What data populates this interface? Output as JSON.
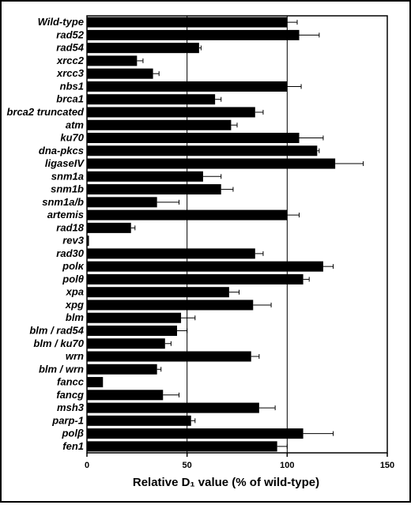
{
  "chart_data": {
    "type": "bar",
    "orientation": "horizontal",
    "title": "",
    "xlabel": "Relative D₁ value (% of wild-type)",
    "ylabel": "",
    "xlim": [
      0,
      150
    ],
    "xticks": [
      0,
      50,
      100,
      150
    ],
    "grid": "vertical lines at 50 and 100",
    "bar_color": "#000000",
    "categories": [
      "Wild-type",
      "rad52",
      "rad54",
      "xrcc2",
      "xrcc3",
      "nbs1",
      "brca1",
      "brca2 truncated",
      "atm",
      "ku70",
      "dna-pkcs",
      "ligaseIV",
      "snm1a",
      "snm1b",
      "snm1a/b",
      "artemis",
      "rad18",
      "rev3",
      "rad30",
      "polκ",
      "polθ",
      "xpa",
      "xpg",
      "blm",
      "blm / rad54",
      "blm / ku70",
      "wrn",
      "blm / wrn",
      "fancc",
      "fancg",
      "msh3",
      "parp-1",
      "polβ",
      "fen1"
    ],
    "values": [
      100,
      106,
      56,
      25,
      33,
      100,
      64,
      84,
      72,
      106,
      115,
      124,
      58,
      67,
      35,
      100,
      22,
      1,
      84,
      118,
      108,
      71,
      83,
      47,
      45,
      39,
      82,
      35,
      8,
      38,
      86,
      52,
      108,
      95
    ],
    "errors": [
      5,
      10,
      1,
      3,
      3,
      7,
      3,
      4,
      3,
      12,
      1,
      14,
      9,
      6,
      11,
      6,
      2,
      0,
      4,
      5,
      3,
      5,
      9,
      7,
      5,
      3,
      4,
      2,
      0,
      8,
      8,
      2,
      15,
      5
    ]
  }
}
